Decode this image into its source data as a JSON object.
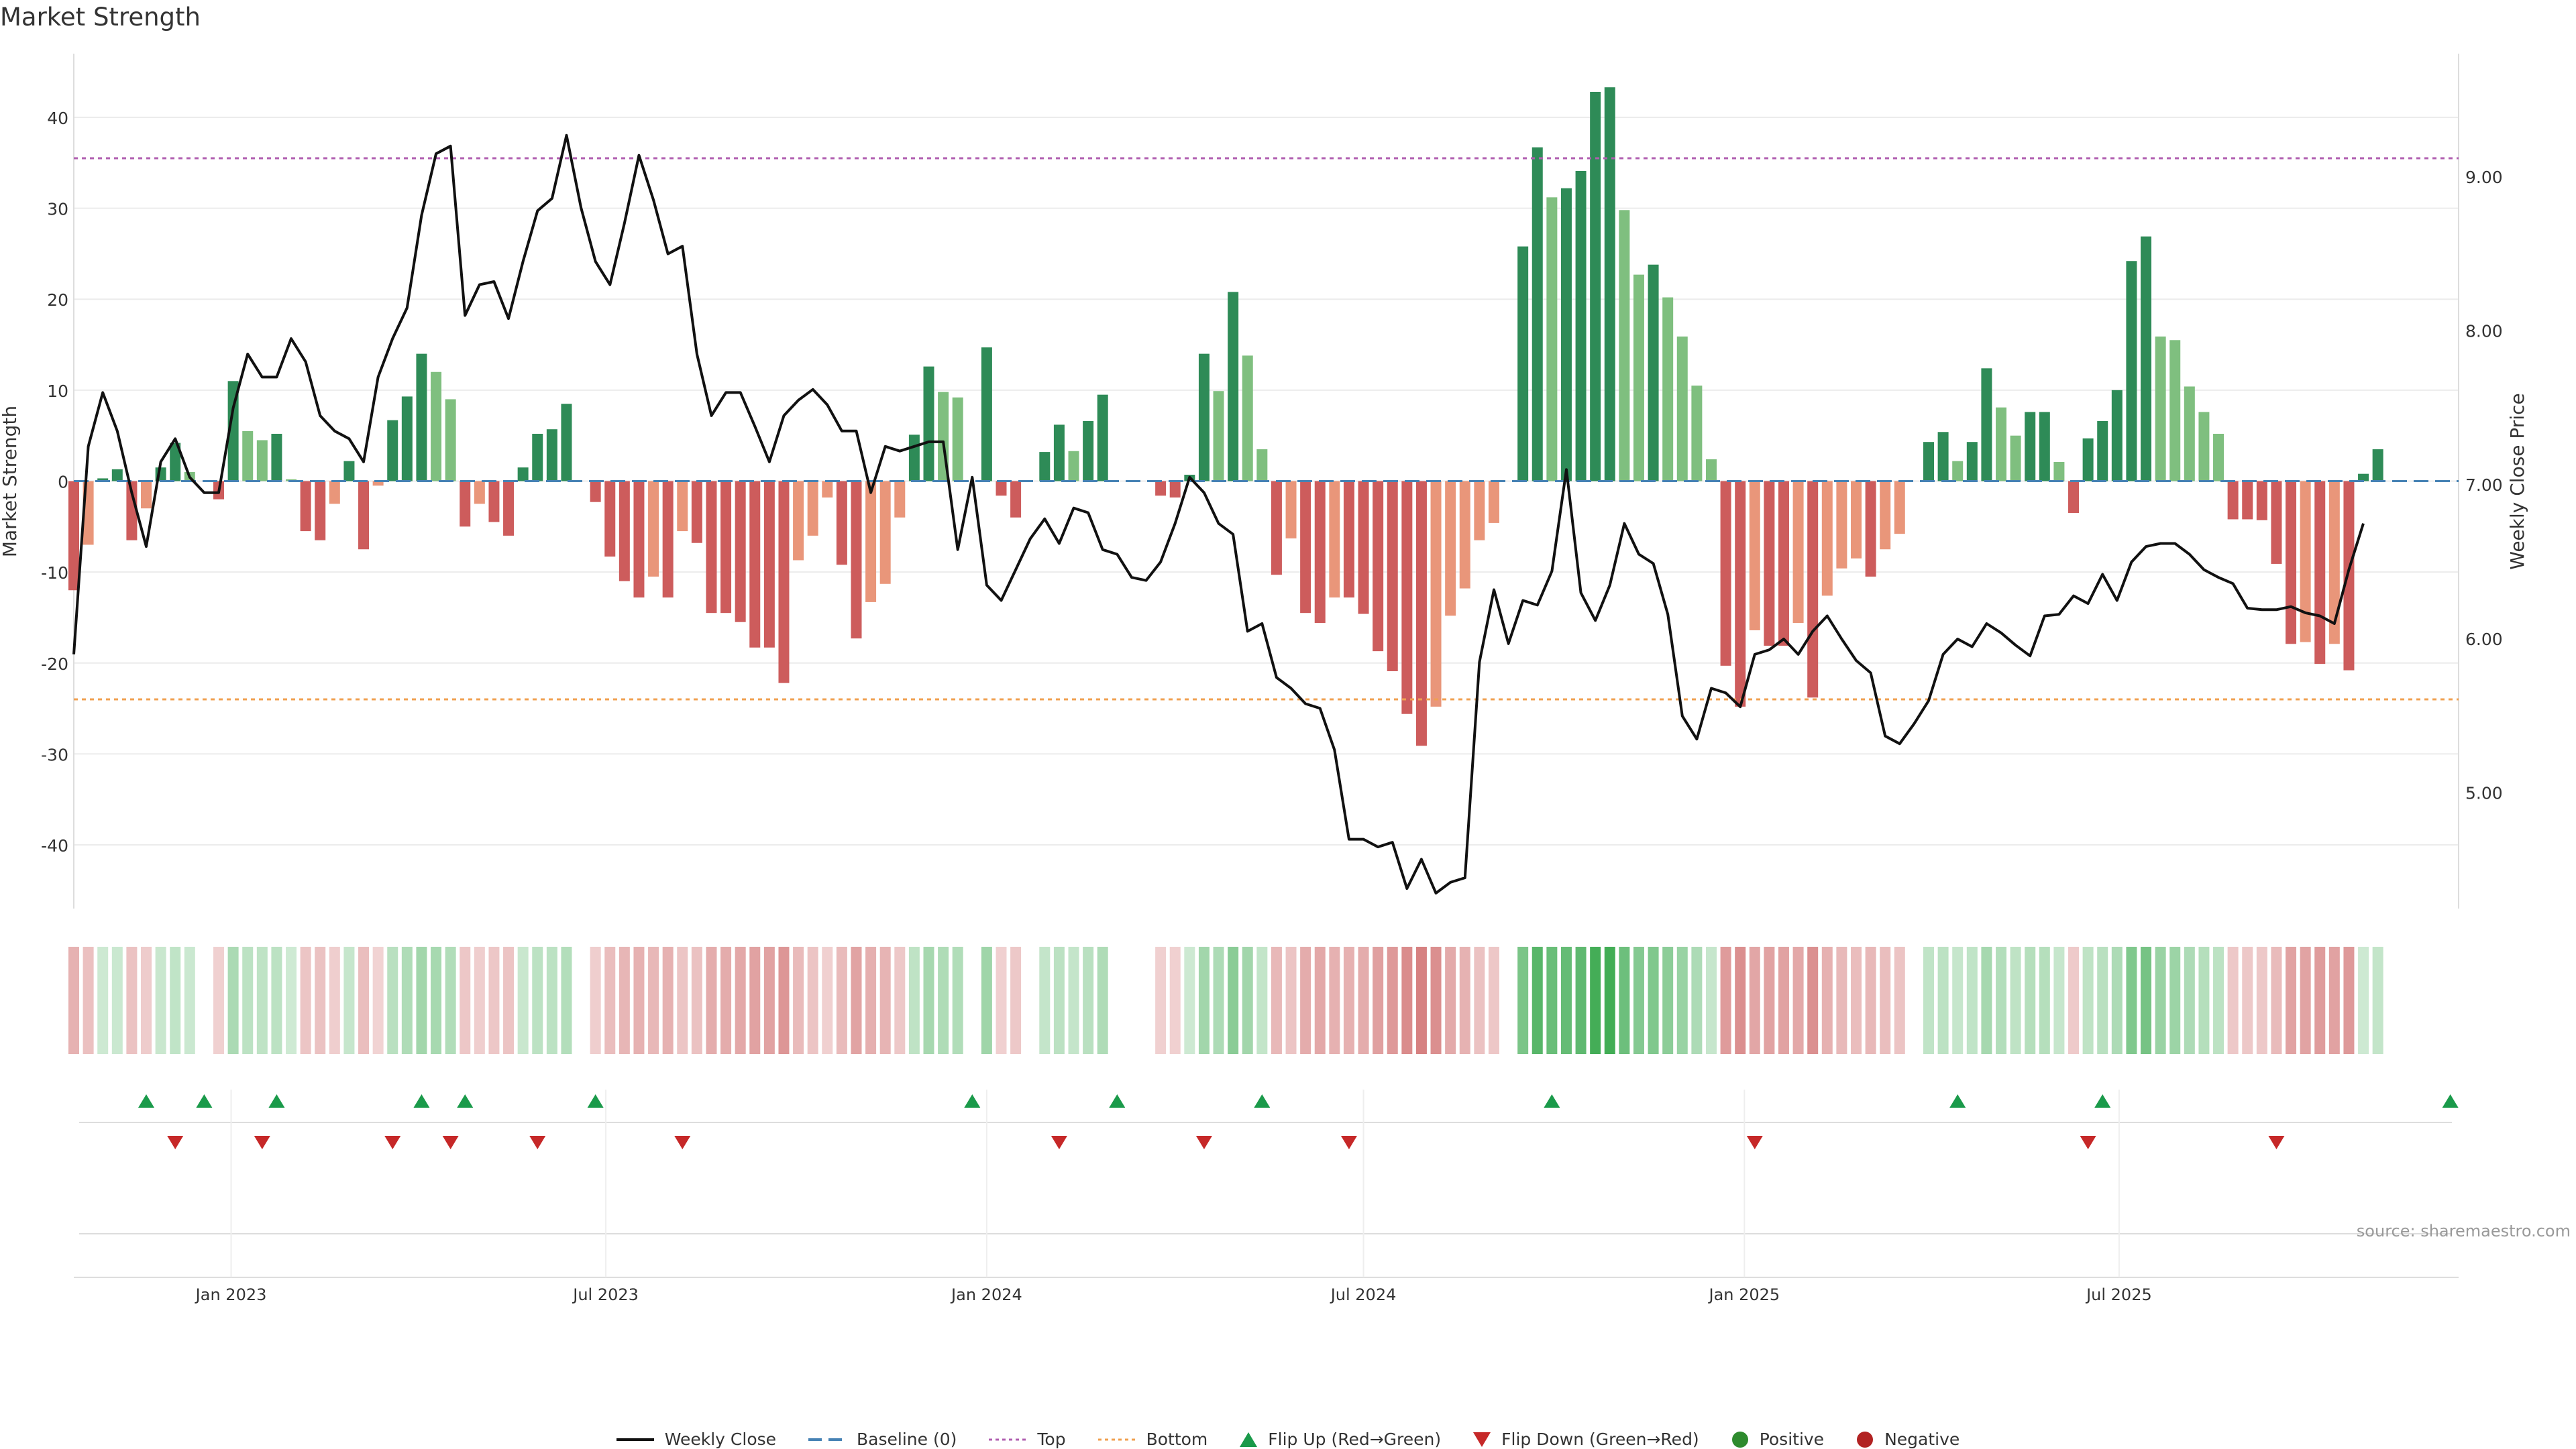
{
  "title": "Market Strength",
  "source": "source: sharemaestro.com",
  "legend": {
    "close": "Weekly Close",
    "baseline": "Baseline (0)",
    "top": "Top",
    "bottom": "Bottom",
    "flip_up": "Flip Up (Red→Green)",
    "flip_down": "Flip Down (Green→Red)",
    "positive": "Positive",
    "negative": "Negative"
  },
  "colors": {
    "pos_strong": "#2e8b57",
    "pos_weak": "#7fbf7f",
    "neg_strong": "#cd5c5c",
    "neg_weak": "#e9967a",
    "close": "#111111",
    "top": "#b05fb0",
    "bottom": "#f0a050",
    "baseline": "#4682b4",
    "flip_up": "#1a9a4a",
    "flip_down": "#c62828"
  },
  "chart_data": {
    "type": "bar",
    "ylabel": "Market Strength",
    "y2label": "Weekly Close Price",
    "ylim": [
      -47,
      47
    ],
    "y2lim": [
      4.25,
      9.8
    ],
    "yticks": [
      -40,
      -30,
      -20,
      -10,
      0,
      10,
      20,
      30,
      40
    ],
    "y2ticks": [
      5.0,
      6.0,
      7.0,
      8.0,
      9.0
    ],
    "y2ticklabels": [
      "5.00",
      "6.00",
      "7.00",
      "8.00",
      "9.00"
    ],
    "top_line": 35.5,
    "bottom_line": -24,
    "xlim": [
      "2022-10-17",
      "2025-12-08"
    ],
    "xticks": [
      "2023-01-01",
      "2023-07-01",
      "2024-01-01",
      "2024-07-01",
      "2025-01-01",
      "2025-07-01"
    ],
    "xticklabels": [
      "Jan 2023",
      "Jul 2023",
      "Jan 2024",
      "Jul 2024",
      "Jan 2025",
      "Jul 2025"
    ],
    "start": "2022-10-17",
    "strength": [
      -12,
      -7,
      0.3,
      1.3,
      -6.5,
      -3,
      1.5,
      4.2,
      1,
      0,
      -2,
      11,
      5.5,
      4.5,
      5.2,
      0.2,
      -5.5,
      -6.5,
      -2.5,
      2.2,
      -7.5,
      -0.5,
      6.7,
      9.3,
      14,
      12,
      9,
      -5,
      -2.5,
      -4.5,
      -6,
      1.5,
      5.2,
      5.7,
      8.5,
      0,
      -2.3,
      -8.3,
      -11,
      -12.8,
      -10.5,
      -12.8,
      -5.5,
      -6.8,
      -14.5,
      -14.5,
      -15.5,
      -18.3,
      -18.3,
      -22.2,
      -8.7,
      -6,
      -1.8,
      -9.2,
      -17.3,
      -13.3,
      -11.3,
      -4,
      5.1,
      12.6,
      9.8,
      9.2,
      0,
      14.7,
      -1.6,
      -4,
      0,
      3.2,
      6.2,
      3.3,
      6.6,
      9.5,
      0,
      0,
      0,
      -1.6,
      -1.8,
      0.7,
      14,
      9.9,
      20.8,
      13.8,
      3.5,
      -10.3,
      -6.3,
      -14.5,
      -15.6,
      -12.8,
      -12.8,
      -14.6,
      -18.7,
      -20.9,
      -25.6,
      -29.1,
      -24.8,
      -14.8,
      -11.8,
      -6.5,
      -4.6,
      0,
      25.8,
      36.7,
      31.2,
      32.2,
      34.1,
      42.8,
      43.3,
      29.8,
      22.7,
      23.8,
      20.2,
      15.9,
      10.5,
      2.4,
      -20.3,
      -24.8,
      -16.4,
      -18.1,
      -18.1,
      -15.6,
      -23.8,
      -12.6,
      -9.6,
      -8.5,
      -10.5,
      -7.5,
      -5.8,
      0,
      4.3,
      5.4,
      2.2,
      4.3,
      12.4,
      8.1,
      5,
      7.6,
      7.6,
      2.1,
      -3.5,
      4.7,
      6.6,
      10,
      24.2,
      26.9,
      15.9,
      15.5,
      10.4,
      7.6,
      5.2,
      -4.2,
      -4.2,
      -4.3,
      -9.1,
      -17.9,
      -17.7,
      -20.1,
      -17.9,
      -20.8,
      0.8,
      3.5
    ],
    "flip_up": [
      "2022-11-21",
      "2022-12-19",
      "2023-01-23",
      "2023-04-03",
      "2023-04-24",
      "2023-06-26",
      "2023-12-25",
      "2024-03-04",
      "2024-05-13",
      "2024-09-30",
      "2025-04-14",
      "2025-06-23",
      "2025-12-08"
    ],
    "flip_down": [
      "2022-12-05",
      "2023-01-16",
      "2023-03-20",
      "2023-04-17",
      "2023-05-29",
      "2023-08-07",
      "2024-02-05",
      "2024-04-15",
      "2024-06-24",
      "2025-01-06",
      "2025-06-16",
      "2025-09-15"
    ],
    "close": [
      5.9,
      7.25,
      7.6,
      7.35,
      6.95,
      6.6,
      7.15,
      7.3,
      7.05,
      6.95,
      6.95,
      7.5,
      7.85,
      7.7,
      7.7,
      7.95,
      7.8,
      7.45,
      7.35,
      7.3,
      7.15,
      7.7,
      7.95,
      8.15,
      8.75,
      9.15,
      9.2,
      8.1,
      8.3,
      8.32,
      8.08,
      8.45,
      8.78,
      8.86,
      9.27,
      8.8,
      8.45,
      8.3,
      8.7,
      9.14,
      8.85,
      8.5,
      8.55,
      7.85,
      7.45,
      7.6,
      7.6,
      7.38,
      7.15,
      7.45,
      7.55,
      7.62,
      7.52,
      7.35,
      7.35,
      6.95,
      7.25,
      7.22,
      7.25,
      7.28,
      7.28,
      6.58,
      7.05,
      6.35,
      6.25,
      6.45,
      6.65,
      6.78,
      6.62,
      6.85,
      6.82,
      6.58,
      6.55,
      6.4,
      6.38,
      6.5,
      6.75,
      7.05,
      6.95,
      6.75,
      6.68,
      6.05,
      6.1,
      5.75,
      5.68,
      5.58,
      5.55,
      5.28,
      4.7,
      4.7,
      4.65,
      4.68,
      4.38,
      4.57,
      4.35,
      4.42,
      4.45,
      5.85,
      6.32,
      5.97,
      6.25,
      6.22,
      6.44,
      7.1,
      6.3,
      6.12,
      6.35,
      6.75,
      6.55,
      6.49,
      6.16,
      5.5,
      5.35,
      5.68,
      5.65,
      5.56,
      5.9,
      5.93,
      6.0,
      5.9,
      6.05,
      6.15,
      6.0,
      5.86,
      5.78,
      5.37,
      5.32,
      5.45,
      5.6,
      5.9,
      6.0,
      5.95,
      6.1,
      6.04,
      5.96,
      5.89,
      6.15,
      6.16,
      6.28,
      6.23,
      6.42,
      6.25,
      6.5,
      6.6,
      6.62,
      6.62,
      6.55,
      6.45,
      6.4,
      6.36,
      6.2,
      6.19,
      6.19,
      6.21,
      6.17,
      6.15,
      6.1,
      6.45,
      6.75
    ]
  }
}
